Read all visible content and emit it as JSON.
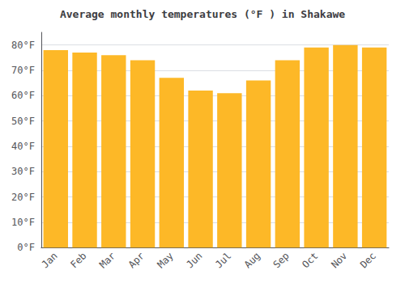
{
  "chart_data": {
    "type": "bar",
    "title": "Average monthly temperatures (°F ) in Shakawe",
    "categories": [
      "Jan",
      "Feb",
      "Mar",
      "Apr",
      "May",
      "Jun",
      "Jul",
      "Aug",
      "Sep",
      "Oct",
      "Nov",
      "Dec"
    ],
    "values": [
      78,
      77,
      76,
      74,
      67,
      62,
      61,
      66,
      74,
      79,
      80,
      79
    ],
    "color": "#FDB827",
    "ylim": [
      0,
      85
    ],
    "yticks": [
      {
        "value": 0,
        "label": "0°F"
      },
      {
        "value": 10,
        "label": "10°F"
      },
      {
        "value": 20,
        "label": "20°F"
      },
      {
        "value": 30,
        "label": "30°F"
      },
      {
        "value": 40,
        "label": "40°F"
      },
      {
        "value": 50,
        "label": "50°F"
      },
      {
        "value": 60,
        "label": "60°F"
      },
      {
        "value": 70,
        "label": "70°F"
      },
      {
        "value": 80,
        "label": "80°F"
      }
    ],
    "grid": true
  }
}
